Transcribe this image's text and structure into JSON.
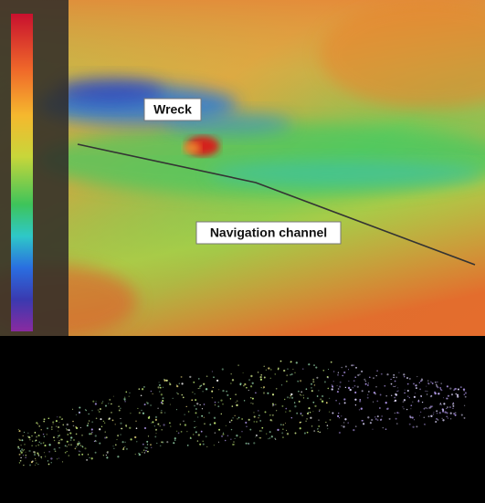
{
  "labels": {
    "wreck": "Wreck",
    "channel": "Navigation channel"
  }
}
